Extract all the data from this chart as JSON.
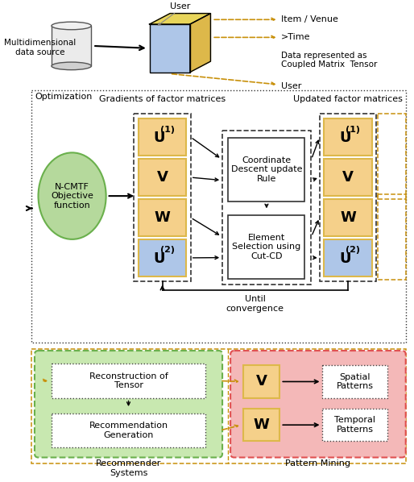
{
  "bg_color": "#ffffff",
  "top": {
    "cyl_label": "Multidimensional\ndata source",
    "cube_face_color": "#aec6e8",
    "cube_side_color": "#ddb84a",
    "cube_top_color": "#e8d55a",
    "user_label": "User",
    "item_label": "Item / Venue",
    "time_label": ">Time",
    "data_label": "Data represented as\nCoupled Matrix  Tensor",
    "user_bottom_label": "User"
  },
  "opt_label": "Optimization",
  "mid": {
    "grad_label": "Gradients of factor matrices",
    "upd_label": "Updated factor matrices",
    "ncmtf_label": "N-CMTF\nObjective\nfunction",
    "ncmtf_fc": "#b5d99c",
    "ncmtf_ec": "#6ab04c",
    "orange": "#f5d08a",
    "blue": "#aec6e8",
    "amber": "#ddb84a",
    "coord_label": "Coordinate\nDescent update\nRule",
    "elem_label": "Element\nSelection using\nCut-CD",
    "until_label": "Until\nconvergence"
  },
  "bot": {
    "rec_fc": "#c8e8b0",
    "rec_ec": "#6ab04c",
    "pm_fc": "#f4b8b8",
    "pm_ec": "#e05050",
    "recon_label": "Reconstruction of\nTensor",
    "regen_label": "Recommendation\nGeneration",
    "rec_sys_label": "Recommender\nSystems",
    "pm_label": "Pattern Mining",
    "spatial_label": "Spatial\nPatterns",
    "temporal_label": "Temporal\nPatterns",
    "v_label": "V",
    "w_label": "W",
    "orange": "#f5d08a",
    "amber": "#ddb84a"
  }
}
